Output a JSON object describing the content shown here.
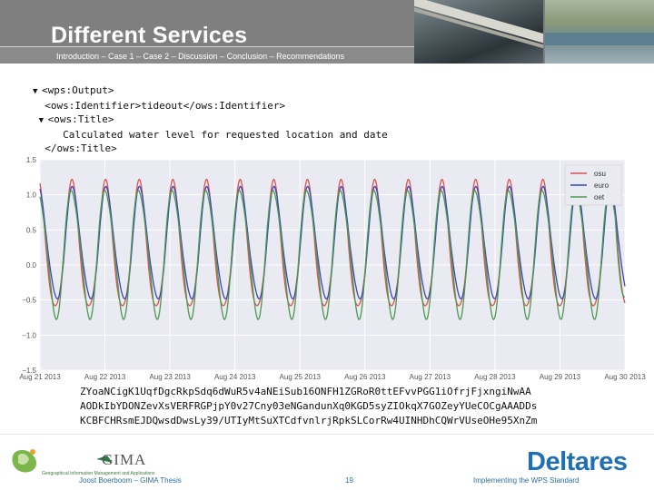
{
  "header": {
    "title": "Different Services",
    "breadcrumb": "Introduction – Case 1 – Case 2 – Discussion – Conclusion – Recommendations"
  },
  "code": {
    "line1": "<wps:Output>",
    "line2": "<ows:Identifier>tideout</ows:Identifier>",
    "line3": "<ows:Title>",
    "line4": "Calculated water level for requested location and date",
    "line5": "</ows:Title>"
  },
  "encoded": {
    "line1": "ZYoaNCigK1UqfDgcRkpSdq6dWuR5v4aNEiSub16ONFH1ZGRoR0ttEFvvPGG1iOfrjFjxngiNwAA",
    "line2": "AODkIbYDONZevXsVERFRGPjpY0v27Cny03eNGandunXq0KGD5syZIOkqX7GOZeyYUeCOCgAAADDs",
    "line3": "KCBFCHRsmEJDQwsdDwsLy39/UTIyMtSuXTCdfvnlrjRpkSLCorRw4UINHDhCQWrVUseOHe95XnZm"
  },
  "chart_data": {
    "type": "line",
    "x_ticks": [
      "Aug 21 2013",
      "Aug 22 2013",
      "Aug 23 2013",
      "Aug 24 2013",
      "Aug 25 2013",
      "Aug 26 2013",
      "Aug 27 2013",
      "Aug 28 2013",
      "Aug 29 2013",
      "Aug 30 2013"
    ],
    "y_ticks": [
      "1.5",
      "1.0",
      "0.5",
      "0.0",
      "−0.5",
      "−1.0",
      "−1.5"
    ],
    "ylim": [
      -1.5,
      1.5
    ],
    "xlim": [
      0,
      9
    ],
    "grid": true,
    "legend_position": "top-right",
    "series": [
      {
        "name": "osu",
        "color": "#d9534f",
        "high": 1.22,
        "low": -0.78,
        "period_days": 0.5175,
        "phase": 0.05
      },
      {
        "name": "euro",
        "color": "#3a46b8",
        "high": 1.15,
        "low": -0.6,
        "period_days": 0.5175,
        "phase": 0.02
      },
      {
        "name": "oet",
        "color": "#4a9a4a",
        "high": 1.18,
        "low": -0.82,
        "period_days": 0.5175,
        "phase": 0.04
      }
    ],
    "end_value_oet": -0.45
  },
  "footer": {
    "author": "Joost Boerboom – GIMA Thesis",
    "page": "19",
    "right": "Implementing the WPS Standard",
    "gima_logo": "GIMA",
    "gima_sub": "Geographical Information Management and Applications",
    "deltares_logo": "Deltares"
  }
}
